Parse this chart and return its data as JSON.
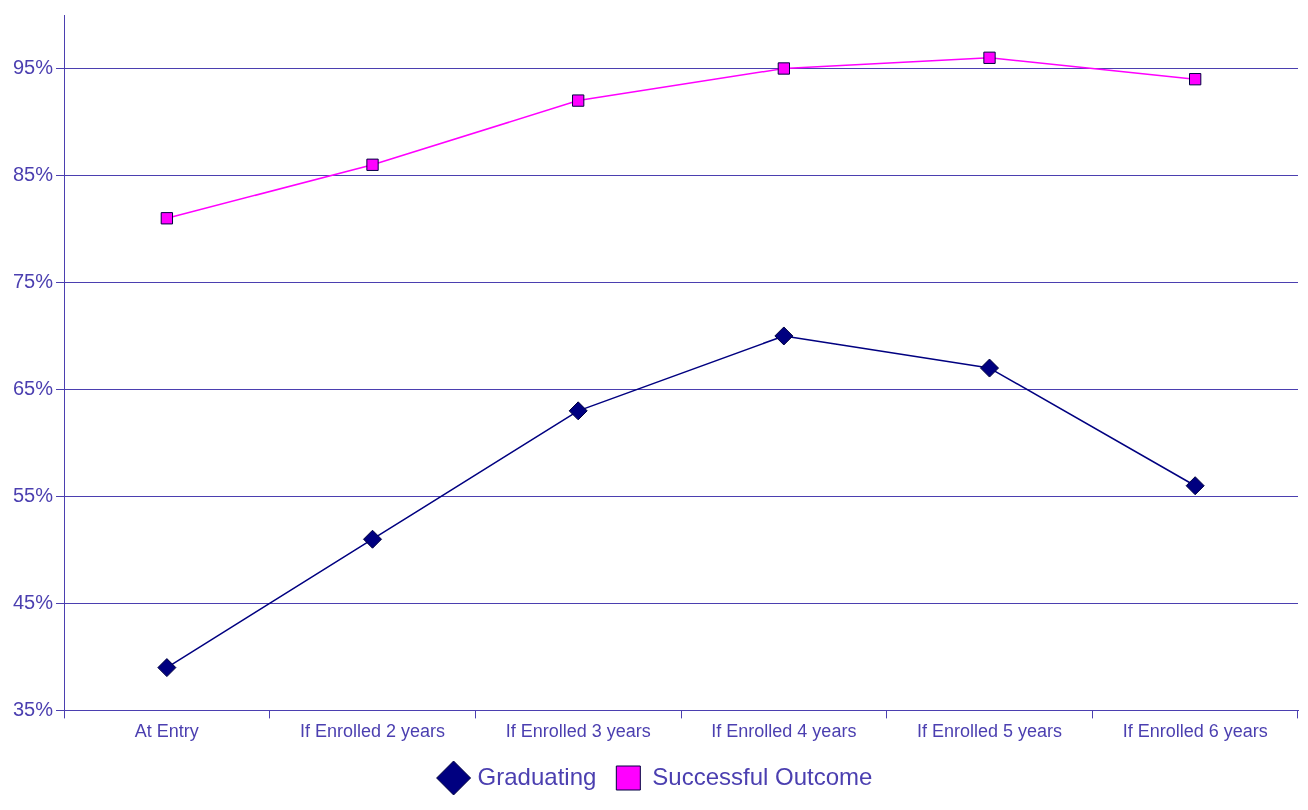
{
  "chart_data": {
    "type": "line",
    "categories": [
      "At Entry",
      "If Enrolled 2 years",
      "If Enrolled 3 years",
      "If Enrolled 4 years",
      "If Enrolled 5 years",
      "If Enrolled 6 years"
    ],
    "series": [
      {
        "name": "Graduating",
        "color": "#000080",
        "marker": "diamond",
        "values": [
          39,
          51,
          63,
          70,
          67,
          56
        ]
      },
      {
        "name": "Successful Outcome",
        "color": "#ff00ff",
        "marker": "square",
        "values": [
          81,
          86,
          92,
          95,
          96,
          94
        ]
      }
    ],
    "ylim": [
      35,
      100
    ],
    "yticks": [
      {
        "value": 35,
        "label": "35%"
      },
      {
        "value": 45,
        "label": "45%"
      },
      {
        "value": 55,
        "label": "55%"
      },
      {
        "value": 65,
        "label": "65%"
      },
      {
        "value": 75,
        "label": "75%"
      },
      {
        "value": 85,
        "label": "85%"
      },
      {
        "value": 95,
        "label": "95%"
      }
    ],
    "grid": "y",
    "legend": "bottom",
    "line_style": "solid"
  }
}
